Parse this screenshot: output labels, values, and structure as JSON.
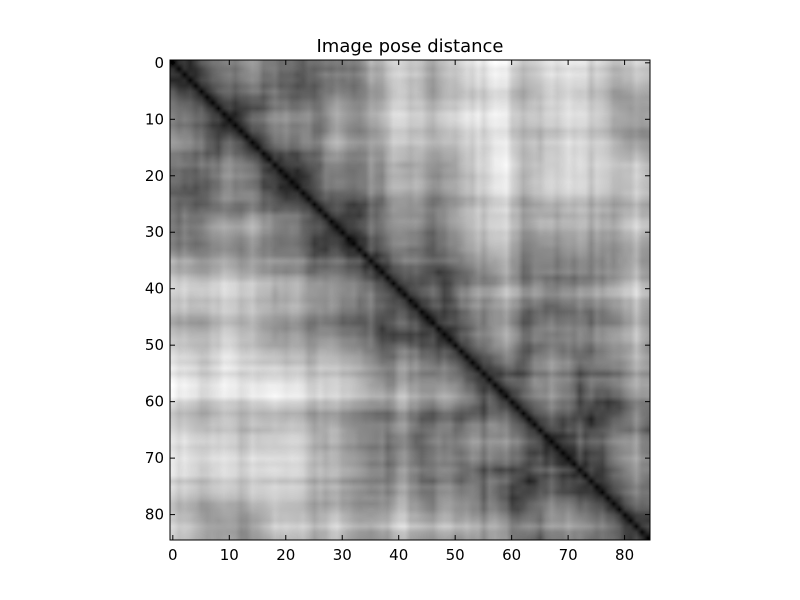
{
  "chart_data": {
    "type": "heatmap",
    "title": "Image pose distance",
    "xlabel": "",
    "ylabel": "",
    "colormap": "gray",
    "colormap_low": "#000000",
    "colormap_high": "#ffffff",
    "n_rows": 85,
    "n_cols": 85,
    "symmetric": true,
    "diagonal_value": 0,
    "value_range": [
      0,
      1
    ],
    "xlim": [
      -0.5,
      84.5
    ],
    "ylim": [
      84.5,
      -0.5
    ],
    "x_ticks": [
      0,
      10,
      20,
      30,
      40,
      50,
      60,
      70,
      80
    ],
    "y_ticks": [
      0,
      10,
      20,
      30,
      40,
      50,
      60,
      70,
      80
    ],
    "x_tick_labels": [
      "0",
      "10",
      "20",
      "30",
      "40",
      "50",
      "60",
      "70",
      "80"
    ],
    "y_tick_labels": [
      "0",
      "10",
      "20",
      "30",
      "40",
      "50",
      "60",
      "70",
      "80"
    ],
    "grid": false,
    "legend": "none"
  }
}
